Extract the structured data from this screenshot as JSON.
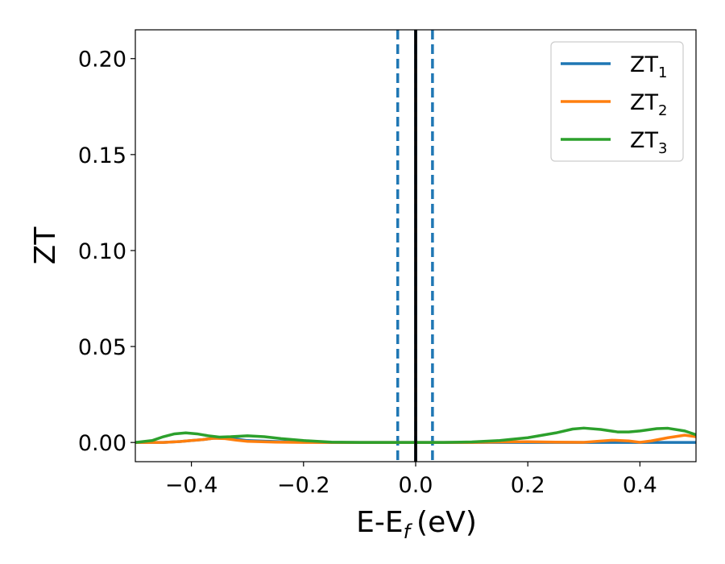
{
  "chart_data": {
    "type": "line",
    "title": "",
    "xlabel": "E-E",
    "xlabel_subscript": "f",
    "xlabel_unit": "(eV)",
    "ylabel": "ZT",
    "xlim": [
      -0.5,
      0.5
    ],
    "ylim": [
      -0.01,
      0.215
    ],
    "x_ticks": [
      -0.4,
      -0.2,
      0.0,
      0.2,
      0.4
    ],
    "x_tick_labels": [
      "−0.4",
      "−0.2",
      "0.0",
      "0.2",
      "0.4"
    ],
    "y_ticks": [
      0.0,
      0.05,
      0.1,
      0.15,
      0.2
    ],
    "y_tick_labels": [
      "0.00",
      "0.05",
      "0.10",
      "0.15",
      "0.20"
    ],
    "grid": false,
    "legend_position": "top-right",
    "vlines": [
      {
        "x": 0.0,
        "style": "solid",
        "color": "#000000"
      },
      {
        "x": -0.032,
        "style": "dashed",
        "color": "#1f77b4"
      },
      {
        "x": 0.0,
        "style": "dashed",
        "color": "#1f77b4"
      },
      {
        "x": 0.03,
        "style": "dashed",
        "color": "#1f77b4"
      }
    ],
    "series": [
      {
        "name": "ZT",
        "subscript": "1",
        "color": "#1f77b4",
        "x": [
          -0.5,
          -0.48,
          -0.45,
          -0.42,
          -0.4,
          -0.38,
          -0.36,
          -0.34,
          -0.32,
          -0.3,
          -0.25,
          -0.2,
          -0.15,
          -0.1,
          -0.05,
          0.0,
          0.05,
          0.1,
          0.15,
          0.2,
          0.25,
          0.3,
          0.35,
          0.4,
          0.45,
          0.5
        ],
        "y": [
          0.0,
          0.0,
          0.0,
          0.0005,
          0.001,
          0.0015,
          0.0022,
          0.0025,
          0.0018,
          0.001,
          0.0005,
          0.0002,
          0.0,
          0.0,
          0.0,
          0.0,
          0.0,
          0.0,
          0.0,
          0.0,
          0.0,
          0.0,
          0.0,
          0.0,
          0.0,
          0.0
        ]
      },
      {
        "name": "ZT",
        "subscript": "2",
        "color": "#ff7f0e",
        "x": [
          -0.5,
          -0.48,
          -0.45,
          -0.42,
          -0.4,
          -0.38,
          -0.36,
          -0.34,
          -0.32,
          -0.3,
          -0.25,
          -0.2,
          -0.15,
          -0.1,
          -0.05,
          0.0,
          0.05,
          0.1,
          0.15,
          0.2,
          0.25,
          0.3,
          0.35,
          0.38,
          0.4,
          0.42,
          0.45,
          0.48,
          0.5
        ],
        "y": [
          0.0,
          0.0,
          0.0,
          0.0005,
          0.001,
          0.0015,
          0.0022,
          0.002,
          0.0012,
          0.0006,
          0.0002,
          0.0,
          0.0,
          0.0,
          0.0,
          0.0,
          0.0,
          0.0,
          0.0003,
          0.0004,
          0.0002,
          0.0001,
          0.0012,
          0.0008,
          0.0001,
          0.0008,
          0.0025,
          0.0038,
          0.003
        ]
      },
      {
        "name": "ZT",
        "subscript": "3",
        "color": "#2ca02c",
        "x": [
          -0.5,
          -0.47,
          -0.45,
          -0.43,
          -0.41,
          -0.39,
          -0.37,
          -0.35,
          -0.33,
          -0.3,
          -0.27,
          -0.24,
          -0.2,
          -0.15,
          -0.1,
          -0.05,
          0.0,
          0.05,
          0.1,
          0.15,
          0.2,
          0.25,
          0.28,
          0.3,
          0.33,
          0.36,
          0.38,
          0.4,
          0.43,
          0.45,
          0.48,
          0.5
        ],
        "y": [
          0.0,
          0.001,
          0.003,
          0.0045,
          0.005,
          0.0045,
          0.0035,
          0.0028,
          0.003,
          0.0035,
          0.003,
          0.002,
          0.001,
          0.0002,
          0.0,
          0.0,
          0.0,
          0.0,
          0.0003,
          0.001,
          0.0025,
          0.005,
          0.007,
          0.0075,
          0.0068,
          0.0055,
          0.0055,
          0.006,
          0.0072,
          0.0074,
          0.006,
          0.004
        ]
      }
    ]
  }
}
